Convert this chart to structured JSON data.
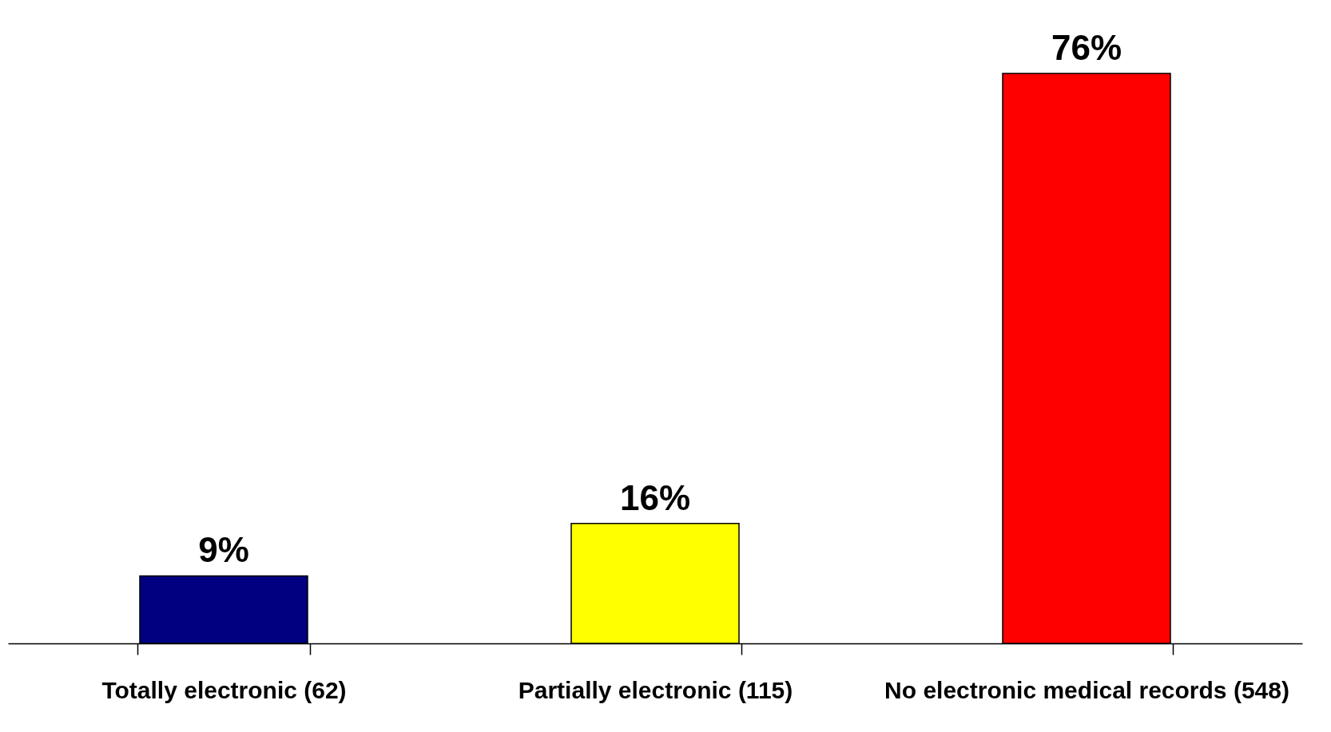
{
  "chart_data": {
    "type": "bar",
    "categories": [
      "Totally electronic (62)",
      "Partially electronic (115)",
      "No electronic medical records (548)"
    ],
    "values": [
      9,
      16,
      76
    ],
    "colors": [
      "#000080",
      "#ffff00",
      "#ff0000"
    ],
    "value_labels": [
      "9%",
      "16%",
      "76%"
    ],
    "grid": false,
    "legend": false
  }
}
